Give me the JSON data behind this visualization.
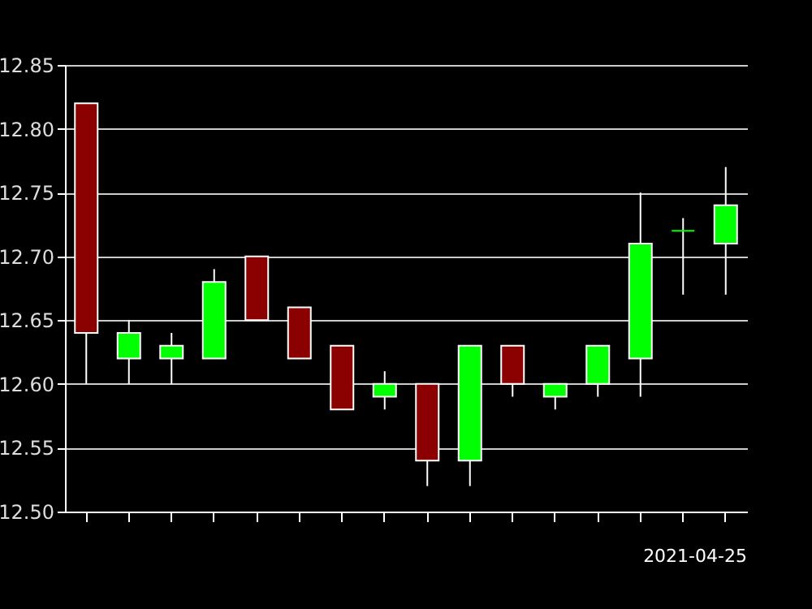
{
  "chart_data": {
    "type": "candlestick",
    "categories": [
      null,
      null,
      null,
      null,
      null,
      null,
      null,
      null,
      null,
      null,
      null,
      null,
      null,
      null,
      null,
      null
    ],
    "ohlc": [
      [
        12.82,
        12.82,
        12.6,
        12.64
      ],
      [
        12.62,
        12.65,
        12.6,
        12.64
      ],
      [
        12.62,
        12.64,
        12.6,
        12.63
      ],
      [
        12.62,
        12.69,
        12.62,
        12.68
      ],
      [
        12.7,
        12.7,
        12.65,
        12.65
      ],
      [
        12.66,
        12.66,
        12.62,
        12.62
      ],
      [
        12.63,
        12.63,
        12.58,
        12.58
      ],
      [
        12.59,
        12.61,
        12.58,
        12.6
      ],
      [
        12.6,
        12.6,
        12.52,
        12.54
      ],
      [
        12.54,
        12.63,
        12.52,
        12.63
      ],
      [
        12.63,
        12.63,
        12.59,
        12.6
      ],
      [
        12.59,
        12.6,
        12.58,
        12.6
      ],
      [
        12.6,
        12.63,
        12.59,
        12.63
      ],
      [
        12.62,
        12.75,
        12.59,
        12.71
      ],
      [
        12.72,
        12.73,
        12.67,
        12.72
      ],
      [
        12.71,
        12.77,
        12.67,
        12.74
      ]
    ],
    "colors": [
      "#8b0000",
      "#00ff00",
      "#00ff00",
      "#00ff00",
      "#8b0000",
      "#8b0000",
      "#8b0000",
      "#00ff00",
      "#8b0000",
      "#00ff00",
      "#8b0000",
      "#00ff00",
      "#00ff00",
      "#00ff00",
      "#00ff00",
      "#00ff00"
    ],
    "ylim": [
      12.5,
      12.85
    ],
    "yticks": [
      {
        "value": 12.5,
        "label": "12.50"
      },
      12.55,
      {
        "value": 12.6,
        "label": "12.60"
      },
      12.65,
      {
        "value": 12.7,
        "label": "12.70"
      },
      12.75,
      {
        "value": 12.8,
        "label": "12.80"
      },
      12.85
    ],
    "grid": "y",
    "annotations": [
      "2021-04-25"
    ]
  }
}
